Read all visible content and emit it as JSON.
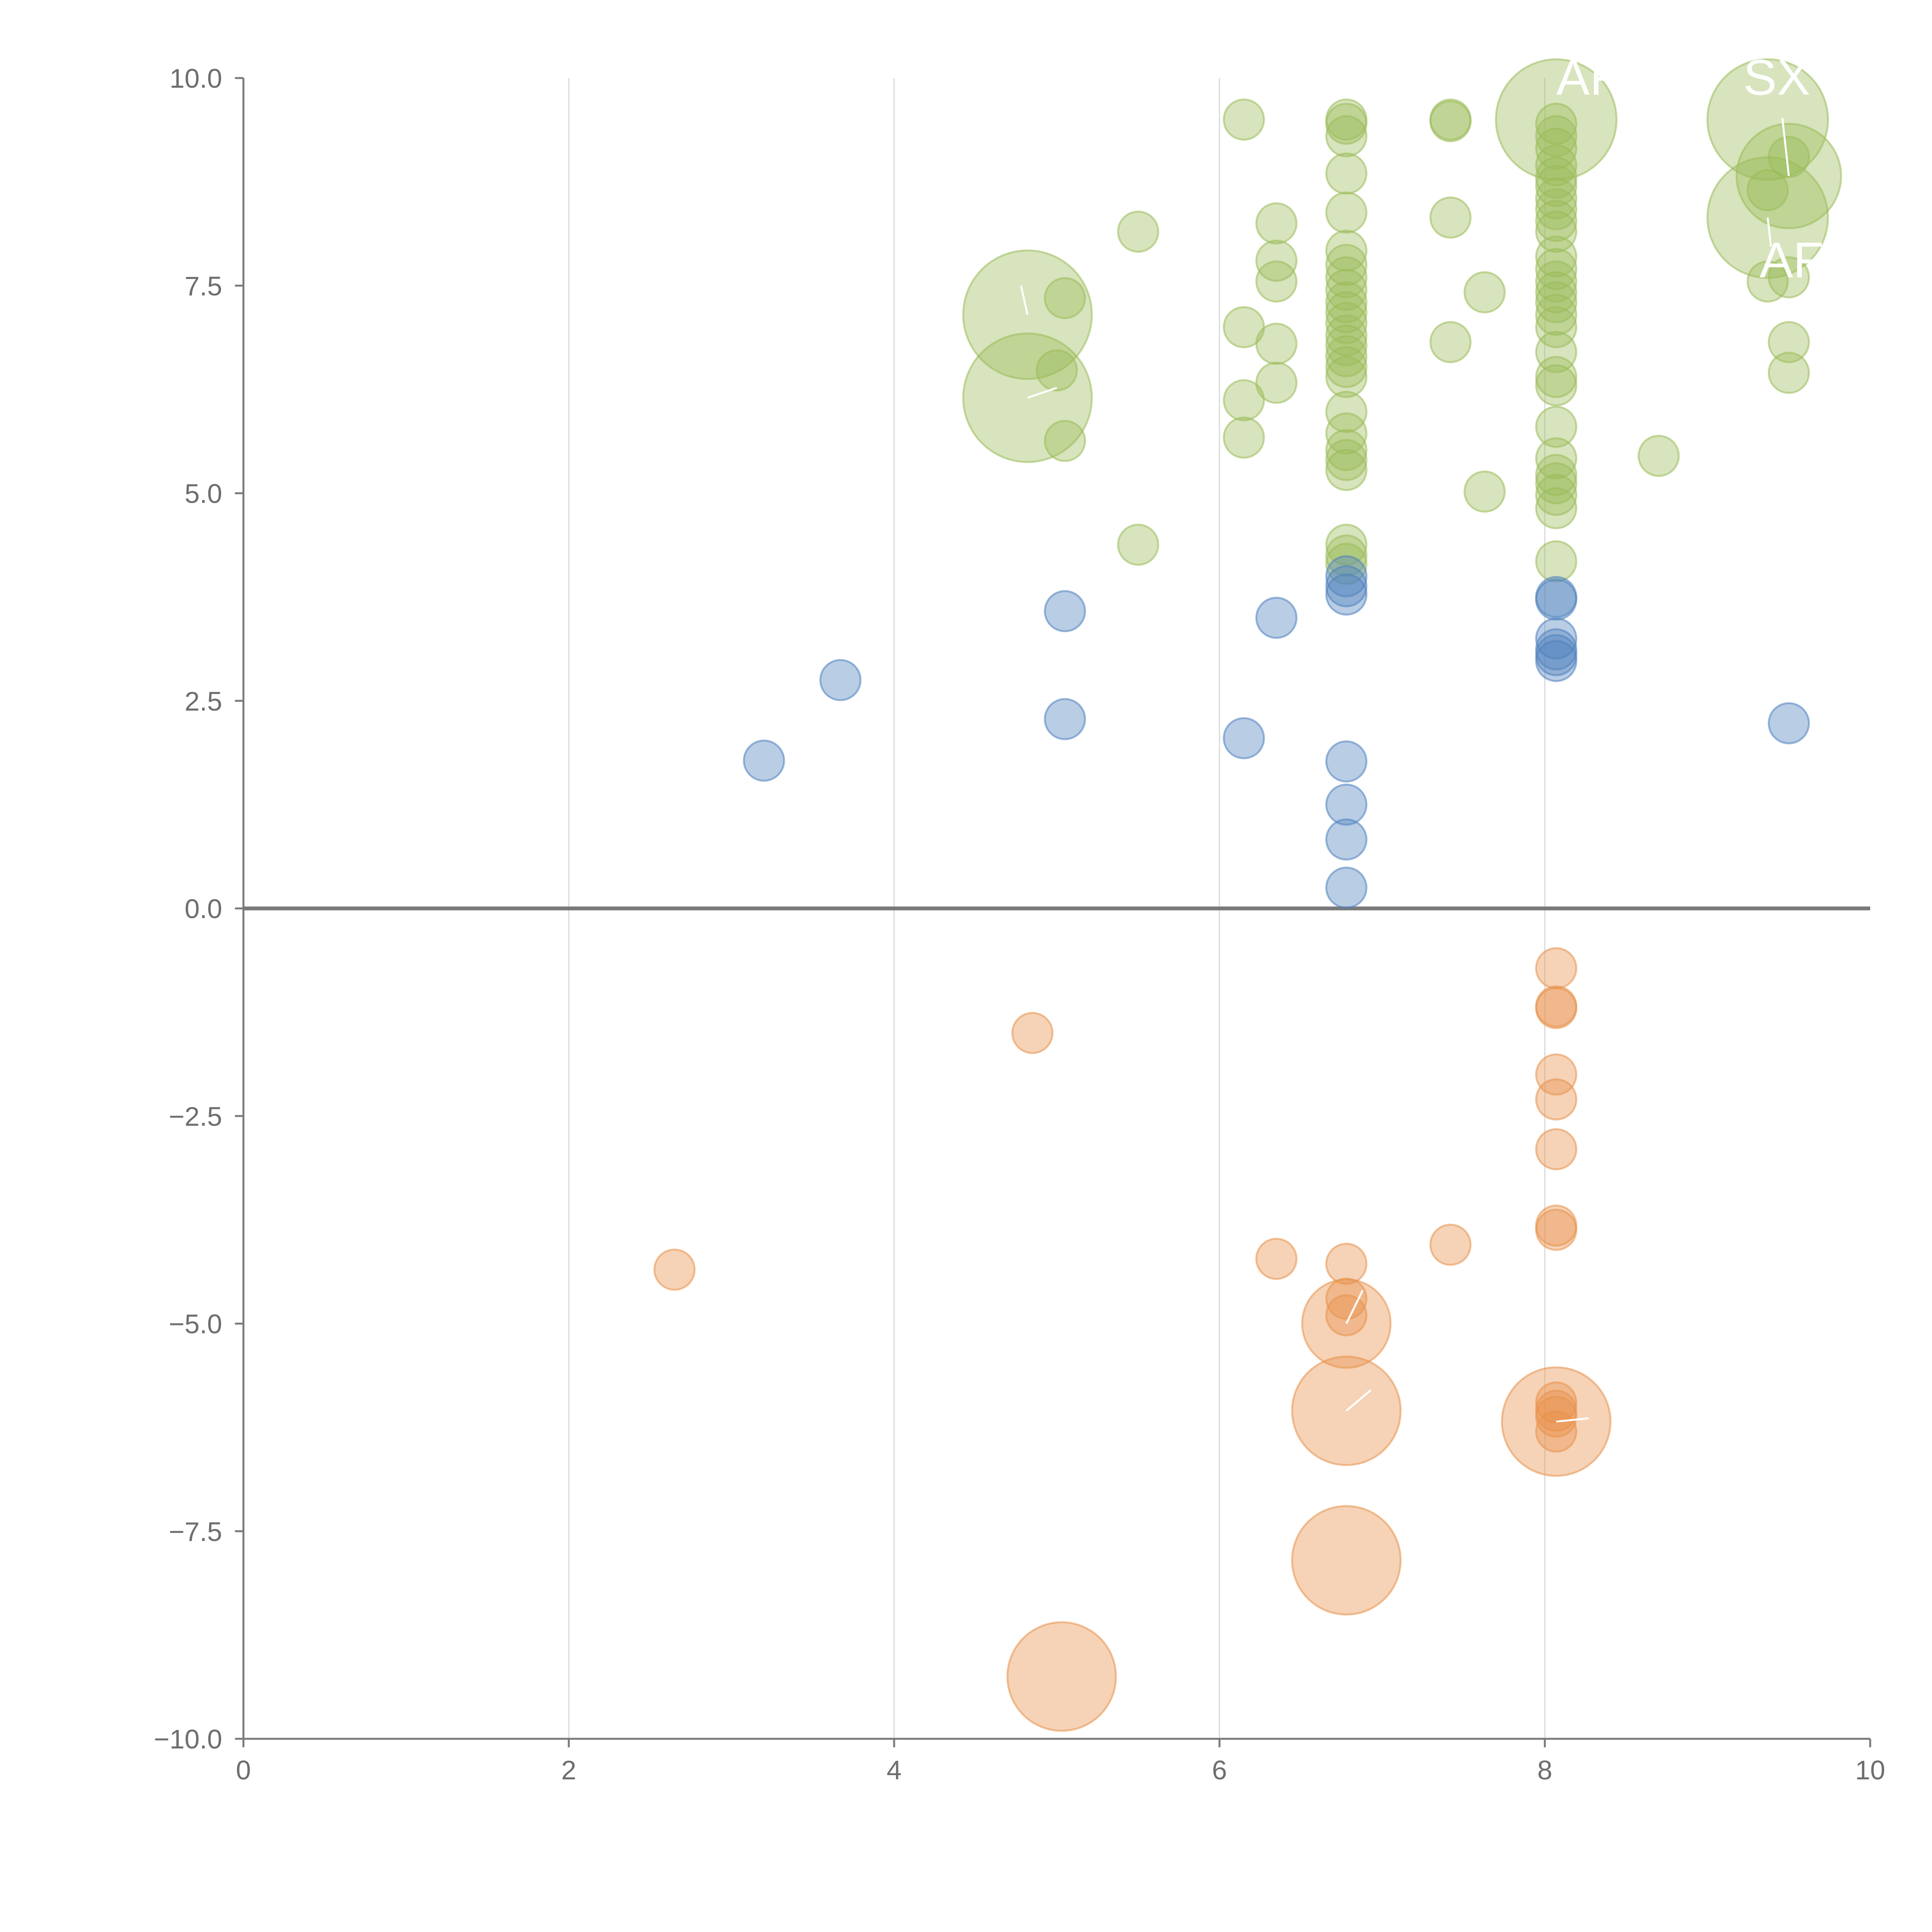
{
  "chart_data": {
    "type": "scatter",
    "title": "",
    "xlabel": "",
    "ylabel": "",
    "xlim": [
      0,
      10
    ],
    "ylim": [
      -10,
      10
    ],
    "x_ticks": [
      "0",
      "2",
      "4",
      "6",
      "8",
      "10"
    ],
    "y_ticks": [
      "10.0",
      "7.5",
      "5.0",
      "2.5",
      "0.0",
      "−2.5",
      "−5.0",
      "−7.5",
      "−10.0"
    ],
    "grid": "vertical",
    "zero_line": true,
    "colors": {
      "green": "#9bbb59",
      "blue": "#4f81bd",
      "orange": "#e8924a"
    },
    "series": [
      {
        "name": "green",
        "points": [
          {
            "x": 6.15,
            "y": 9.5,
            "r": 1
          },
          {
            "x": 5.5,
            "y": 8.15,
            "r": 1
          },
          {
            "x": 6.35,
            "y": 8.25,
            "r": 1
          },
          {
            "x": 6.35,
            "y": 7.8,
            "r": 1
          },
          {
            "x": 6.35,
            "y": 7.55,
            "r": 1
          },
          {
            "x": 5.05,
            "y": 7.35,
            "r": 1
          },
          {
            "x": 4.82,
            "y": 7.15,
            "r": 3.2
          },
          {
            "x": 6.15,
            "y": 7.0,
            "r": 1
          },
          {
            "x": 6.35,
            "y": 6.8,
            "r": 1
          },
          {
            "x": 5.0,
            "y": 6.48,
            "r": 1
          },
          {
            "x": 6.35,
            "y": 6.33,
            "r": 1
          },
          {
            "x": 4.82,
            "y": 6.15,
            "r": 3.2
          },
          {
            "x": 6.15,
            "y": 6.12,
            "r": 1
          },
          {
            "x": 5.05,
            "y": 5.63,
            "r": 1
          },
          {
            "x": 6.15,
            "y": 5.67,
            "r": 1
          },
          {
            "x": 5.5,
            "y": 4.38,
            "r": 1
          },
          {
            "x": 6.78,
            "y": 9.5,
            "r": 1
          },
          {
            "x": 6.78,
            "y": 9.45,
            "r": 1
          },
          {
            "x": 6.78,
            "y": 9.3,
            "r": 1
          },
          {
            "x": 6.78,
            "y": 8.85,
            "r": 1
          },
          {
            "x": 6.78,
            "y": 8.38,
            "r": 1
          },
          {
            "x": 6.78,
            "y": 7.92,
            "r": 1
          },
          {
            "x": 6.78,
            "y": 7.75,
            "r": 1
          },
          {
            "x": 6.78,
            "y": 7.6,
            "r": 1
          },
          {
            "x": 6.78,
            "y": 7.45,
            "r": 1
          },
          {
            "x": 6.78,
            "y": 7.3,
            "r": 1
          },
          {
            "x": 6.78,
            "y": 7.18,
            "r": 1
          },
          {
            "x": 6.78,
            "y": 7.05,
            "r": 1
          },
          {
            "x": 6.78,
            "y": 6.9,
            "r": 1
          },
          {
            "x": 6.78,
            "y": 6.78,
            "r": 1
          },
          {
            "x": 6.78,
            "y": 6.65,
            "r": 1
          },
          {
            "x": 6.78,
            "y": 6.52,
            "r": 1
          },
          {
            "x": 6.78,
            "y": 6.4,
            "r": 1
          },
          {
            "x": 6.78,
            "y": 5.98,
            "r": 1
          },
          {
            "x": 6.78,
            "y": 5.72,
            "r": 1
          },
          {
            "x": 6.78,
            "y": 5.52,
            "r": 1
          },
          {
            "x": 6.78,
            "y": 5.4,
            "r": 1
          },
          {
            "x": 6.78,
            "y": 5.28,
            "r": 1
          },
          {
            "x": 6.78,
            "y": 4.38,
            "r": 1
          },
          {
            "x": 6.78,
            "y": 4.25,
            "r": 1
          },
          {
            "x": 6.78,
            "y": 4.15,
            "r": 1
          },
          {
            "x": 7.42,
            "y": 9.5,
            "r": 1
          },
          {
            "x": 7.42,
            "y": 9.48,
            "r": 1
          },
          {
            "x": 7.42,
            "y": 8.32,
            "r": 1
          },
          {
            "x": 7.63,
            "y": 7.42,
            "r": 1
          },
          {
            "x": 7.42,
            "y": 6.82,
            "r": 1
          },
          {
            "x": 7.63,
            "y": 5.02,
            "r": 1
          },
          {
            "x": 8.07,
            "y": 9.5,
            "r": 3.0
          },
          {
            "x": 8.07,
            "y": 9.45,
            "r": 1
          },
          {
            "x": 8.07,
            "y": 9.3,
            "r": 1
          },
          {
            "x": 8.07,
            "y": 9.15,
            "r": 1
          },
          {
            "x": 8.07,
            "y": 8.95,
            "r": 1
          },
          {
            "x": 8.07,
            "y": 8.8,
            "r": 1
          },
          {
            "x": 8.07,
            "y": 8.7,
            "r": 1
          },
          {
            "x": 8.07,
            "y": 8.55,
            "r": 1
          },
          {
            "x": 8.07,
            "y": 8.42,
            "r": 1
          },
          {
            "x": 8.07,
            "y": 8.28,
            "r": 1
          },
          {
            "x": 8.07,
            "y": 8.15,
            "r": 1
          },
          {
            "x": 8.07,
            "y": 7.85,
            "r": 1
          },
          {
            "x": 8.07,
            "y": 7.7,
            "r": 1
          },
          {
            "x": 8.07,
            "y": 7.55,
            "r": 1
          },
          {
            "x": 8.07,
            "y": 7.42,
            "r": 1
          },
          {
            "x": 8.07,
            "y": 7.3,
            "r": 1
          },
          {
            "x": 8.07,
            "y": 7.15,
            "r": 1
          },
          {
            "x": 8.07,
            "y": 7.0,
            "r": 1
          },
          {
            "x": 8.07,
            "y": 6.7,
            "r": 1
          },
          {
            "x": 8.07,
            "y": 6.4,
            "r": 1
          },
          {
            "x": 8.07,
            "y": 6.3,
            "r": 1
          },
          {
            "x": 8.07,
            "y": 5.8,
            "r": 1
          },
          {
            "x": 8.07,
            "y": 5.42,
            "r": 1
          },
          {
            "x": 8.07,
            "y": 5.22,
            "r": 1
          },
          {
            "x": 8.07,
            "y": 5.12,
            "r": 1
          },
          {
            "x": 8.07,
            "y": 4.98,
            "r": 1
          },
          {
            "x": 8.07,
            "y": 4.82,
            "r": 1
          },
          {
            "x": 8.07,
            "y": 4.18,
            "r": 1
          },
          {
            "x": 8.7,
            "y": 5.45,
            "r": 1
          },
          {
            "x": 9.37,
            "y": 9.5,
            "r": 3.0
          },
          {
            "x": 9.5,
            "y": 9.05,
            "r": 1
          },
          {
            "x": 9.5,
            "y": 8.82,
            "r": 2.6
          },
          {
            "x": 9.37,
            "y": 8.65,
            "r": 1
          },
          {
            "x": 9.37,
            "y": 8.32,
            "r": 3.0
          },
          {
            "x": 9.37,
            "y": 7.55,
            "r": 1
          },
          {
            "x": 9.5,
            "y": 7.6,
            "r": 1
          },
          {
            "x": 9.5,
            "y": 6.82,
            "r": 1
          },
          {
            "x": 9.5,
            "y": 6.45,
            "r": 1
          }
        ]
      },
      {
        "name": "blue",
        "points": [
          {
            "x": 3.2,
            "y": 1.78,
            "r": 1
          },
          {
            "x": 3.67,
            "y": 2.75,
            "r": 1
          },
          {
            "x": 5.05,
            "y": 3.58,
            "r": 1
          },
          {
            "x": 5.05,
            "y": 2.28,
            "r": 1
          },
          {
            "x": 6.15,
            "y": 2.05,
            "r": 1
          },
          {
            "x": 6.35,
            "y": 3.5,
            "r": 1
          },
          {
            "x": 6.78,
            "y": 4.0,
            "r": 1
          },
          {
            "x": 6.78,
            "y": 3.88,
            "r": 1
          },
          {
            "x": 6.78,
            "y": 3.78,
            "r": 1
          },
          {
            "x": 6.78,
            "y": 1.77,
            "r": 1
          },
          {
            "x": 6.78,
            "y": 1.25,
            "r": 1
          },
          {
            "x": 6.78,
            "y": 0.83,
            "r": 1
          },
          {
            "x": 6.78,
            "y": 0.25,
            "r": 1
          },
          {
            "x": 8.07,
            "y": 3.75,
            "r": 1
          },
          {
            "x": 8.07,
            "y": 3.72,
            "r": 1
          },
          {
            "x": 8.07,
            "y": 3.25,
            "r": 1
          },
          {
            "x": 8.07,
            "y": 3.12,
            "r": 1
          },
          {
            "x": 8.07,
            "y": 3.05,
            "r": 1
          },
          {
            "x": 8.07,
            "y": 2.98,
            "r": 1
          },
          {
            "x": 9.5,
            "y": 2.23,
            "r": 1
          }
        ]
      },
      {
        "name": "orange",
        "points": [
          {
            "x": 2.65,
            "y": -4.35,
            "r": 1
          },
          {
            "x": 4.85,
            "y": -1.5,
            "r": 1
          },
          {
            "x": 6.35,
            "y": -4.22,
            "r": 1
          },
          {
            "x": 6.78,
            "y": -4.28,
            "r": 1
          },
          {
            "x": 6.78,
            "y": -4.7,
            "r": 1
          },
          {
            "x": 6.78,
            "y": -4.9,
            "r": 1
          },
          {
            "x": 6.78,
            "y": -5.0,
            "r": 2.2
          },
          {
            "x": 6.78,
            "y": -6.05,
            "r": 2.7
          },
          {
            "x": 6.78,
            "y": -7.85,
            "r": 2.7
          },
          {
            "x": 5.03,
            "y": -9.25,
            "r": 2.7
          },
          {
            "x": 7.42,
            "y": -4.05,
            "r": 1
          },
          {
            "x": 8.07,
            "y": -0.72,
            "r": 1
          },
          {
            "x": 8.07,
            "y": -1.18,
            "r": 1
          },
          {
            "x": 8.07,
            "y": -1.2,
            "r": 1
          },
          {
            "x": 8.07,
            "y": -2.0,
            "r": 1
          },
          {
            "x": 8.07,
            "y": -2.3,
            "r": 1
          },
          {
            "x": 8.07,
            "y": -2.9,
            "r": 1
          },
          {
            "x": 8.07,
            "y": -3.82,
            "r": 1
          },
          {
            "x": 8.07,
            "y": -3.87,
            "r": 1
          },
          {
            "x": 8.07,
            "y": -5.95,
            "r": 1
          },
          {
            "x": 8.07,
            "y": -6.05,
            "r": 1
          },
          {
            "x": 8.07,
            "y": -6.12,
            "r": 1
          },
          {
            "x": 8.07,
            "y": -6.18,
            "r": 2.7
          },
          {
            "x": 8.07,
            "y": -6.3,
            "r": 1
          }
        ]
      }
    ],
    "annotations": [
      {
        "text": "AF",
        "x": 8.07,
        "y": 9.8
      },
      {
        "text": "SX",
        "x": 9.22,
        "y": 9.8
      },
      {
        "text": "AF",
        "x": 9.32,
        "y": 7.6
      }
    ]
  }
}
